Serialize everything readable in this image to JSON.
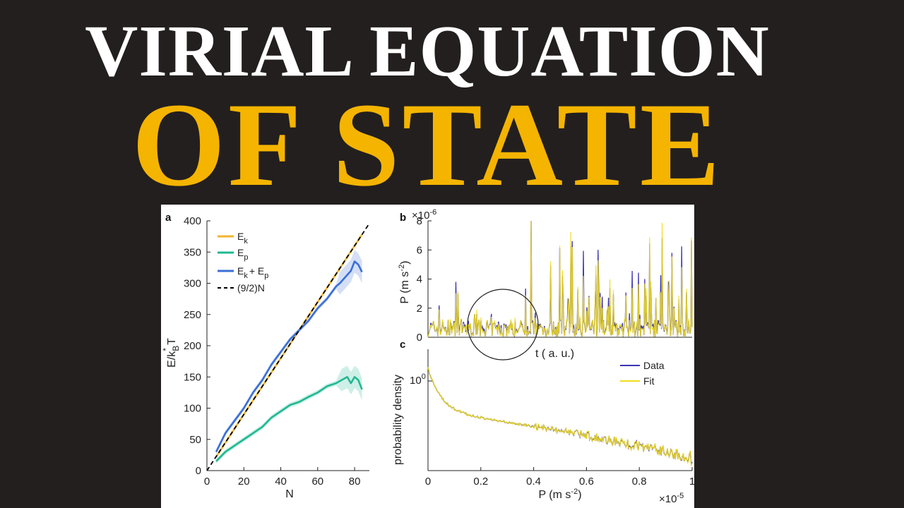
{
  "header": {
    "title_line1": "VIRIAL EQUATION",
    "title_line2": "OF STATE"
  },
  "colors": {
    "background": "#231f1e",
    "title_white": "#ffffff",
    "title_gold": "#f4b400",
    "ek": "#f2b431",
    "ep": "#1fb892",
    "sum": "#3a6fd6",
    "ideal": "#000000",
    "data": "#3b33b0",
    "fit": "#f0dc1e"
  },
  "chart_data": [
    {
      "panel_label": "a",
      "type": "line",
      "xlabel": "N",
      "ylabel_parts": [
        "E/k",
        "B",
        "*",
        " T"
      ],
      "xlim": [
        0,
        88
      ],
      "ylim": [
        0,
        400
      ],
      "xticks": [
        "0",
        "20",
        "40",
        "60",
        "80"
      ],
      "yticks": [
        "0",
        "50",
        "100",
        "150",
        "200",
        "250",
        "300",
        "350",
        "400"
      ],
      "legend_position": "top-left",
      "series": [
        {
          "key": "ek",
          "name_base": "E",
          "name_sub": "k",
          "color": "#f2b431",
          "x": [
            5,
            20,
            40,
            60,
            84
          ],
          "y": [
            22,
            90,
            180,
            270,
            378
          ]
        },
        {
          "key": "ep",
          "name_base": "E",
          "name_sub": "p",
          "color": "#1fb892",
          "x": [
            5,
            10,
            15,
            20,
            25,
            30,
            35,
            40,
            45,
            50,
            55,
            60,
            65,
            70,
            73,
            76,
            78,
            80,
            82,
            84
          ],
          "y": [
            15,
            30,
            40,
            50,
            60,
            70,
            85,
            95,
            105,
            110,
            118,
            125,
            135,
            140,
            145,
            150,
            140,
            150,
            145,
            130
          ]
        },
        {
          "key": "sum",
          "name_base": "E",
          "name_sub": "k",
          "name_mid": "+ E",
          "name_sub2": "p",
          "color": "#3a6fd6",
          "x": [
            5,
            10,
            15,
            20,
            25,
            30,
            35,
            40,
            45,
            50,
            55,
            60,
            65,
            70,
            72,
            75,
            78,
            80,
            82,
            84
          ],
          "y": [
            30,
            60,
            80,
            100,
            125,
            145,
            170,
            190,
            210,
            225,
            240,
            260,
            275,
            295,
            300,
            310,
            320,
            335,
            330,
            318
          ]
        },
        {
          "key": "ideal",
          "name": "(9/2)N",
          "color": "#000000",
          "dashed": true,
          "x": [
            0,
            88
          ],
          "y": [
            0,
            396
          ]
        }
      ]
    },
    {
      "panel_label": "b",
      "type": "line",
      "xlabel": "t ( a. u.)",
      "ylabel": "P  (m s",
      "ylabel_sup": "-2",
      "scale_label": "×10",
      "scale_exp": "-6",
      "ylim": [
        0,
        8
      ],
      "yticks": [
        "0",
        "2",
        "4",
        "6",
        "8"
      ],
      "series": [
        {
          "name": "Data",
          "color": "#3b33b0"
        },
        {
          "name": "Fit",
          "color": "#f0dc1e"
        }
      ]
    },
    {
      "panel_label": "c",
      "type": "line",
      "xlabel": "P  (m s",
      "xlabel_sup": "-2",
      "xlabel_close": ")",
      "ylabel": "probability density",
      "y_scale": "log",
      "ytick_base": "10",
      "ytick_exp": "0",
      "xlim": [
        0,
        1
      ],
      "xticks": [
        "0",
        "0.2",
        "0.4",
        "0.6",
        "0.8",
        "1"
      ],
      "scale_label": "×10",
      "scale_exp": "-5",
      "legend_position": "top-right",
      "series": [
        {
          "name": "Data",
          "color": "#3b33b0"
        },
        {
          "name": "Fit",
          "color": "#f0dc1e"
        }
      ]
    }
  ]
}
